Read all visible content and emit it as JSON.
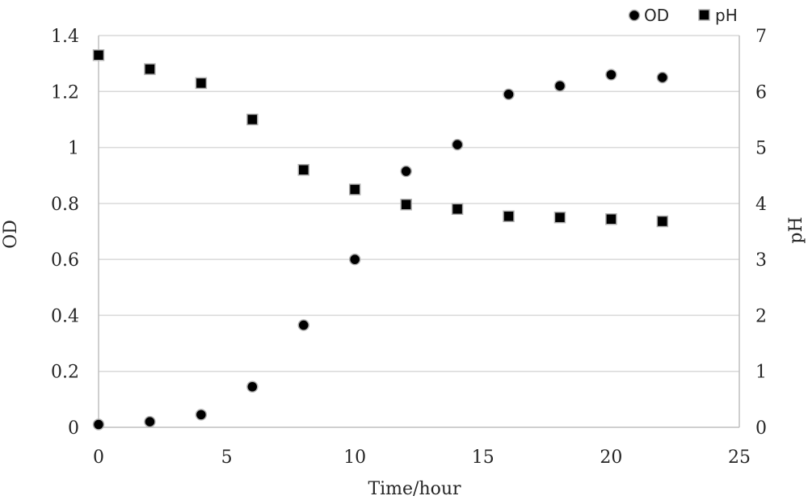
{
  "chart_data": {
    "type": "scatter",
    "title": "",
    "xlabel": "Time/hour",
    "ylabel": "OD",
    "y2label": "pH",
    "xlim": [
      0,
      25
    ],
    "ylim": [
      0,
      1.4
    ],
    "y2lim": [
      0,
      7
    ],
    "x_ticks": [
      "0",
      "5",
      "10",
      "15",
      "20",
      "25"
    ],
    "y_ticks": [
      "0",
      "0.2",
      "0.4",
      "0.6",
      "0.8",
      "1",
      "1.2",
      "1.4"
    ],
    "y2_ticks": [
      "0",
      "1",
      "2",
      "3",
      "4",
      "5",
      "6",
      "7"
    ],
    "grid": true,
    "legend_position": "top-right",
    "series": [
      {
        "name": "OD",
        "axis": "left",
        "marker": "circle",
        "color": "#000000",
        "x": [
          0,
          2,
          4,
          6,
          8,
          10,
          12,
          14,
          16,
          18,
          20,
          22
        ],
        "y": [
          0.01,
          0.02,
          0.045,
          0.145,
          0.365,
          0.6,
          0.915,
          1.01,
          1.19,
          1.22,
          1.26,
          1.25
        ]
      },
      {
        "name": "pH",
        "axis": "right",
        "marker": "square",
        "color": "#000000",
        "x": [
          0,
          2,
          4,
          6,
          8,
          10,
          12,
          14,
          16,
          18,
          20,
          22
        ],
        "y": [
          6.65,
          6.4,
          6.15,
          5.5,
          4.6,
          4.25,
          3.98,
          3.9,
          3.77,
          3.75,
          3.72,
          3.68
        ]
      }
    ]
  }
}
